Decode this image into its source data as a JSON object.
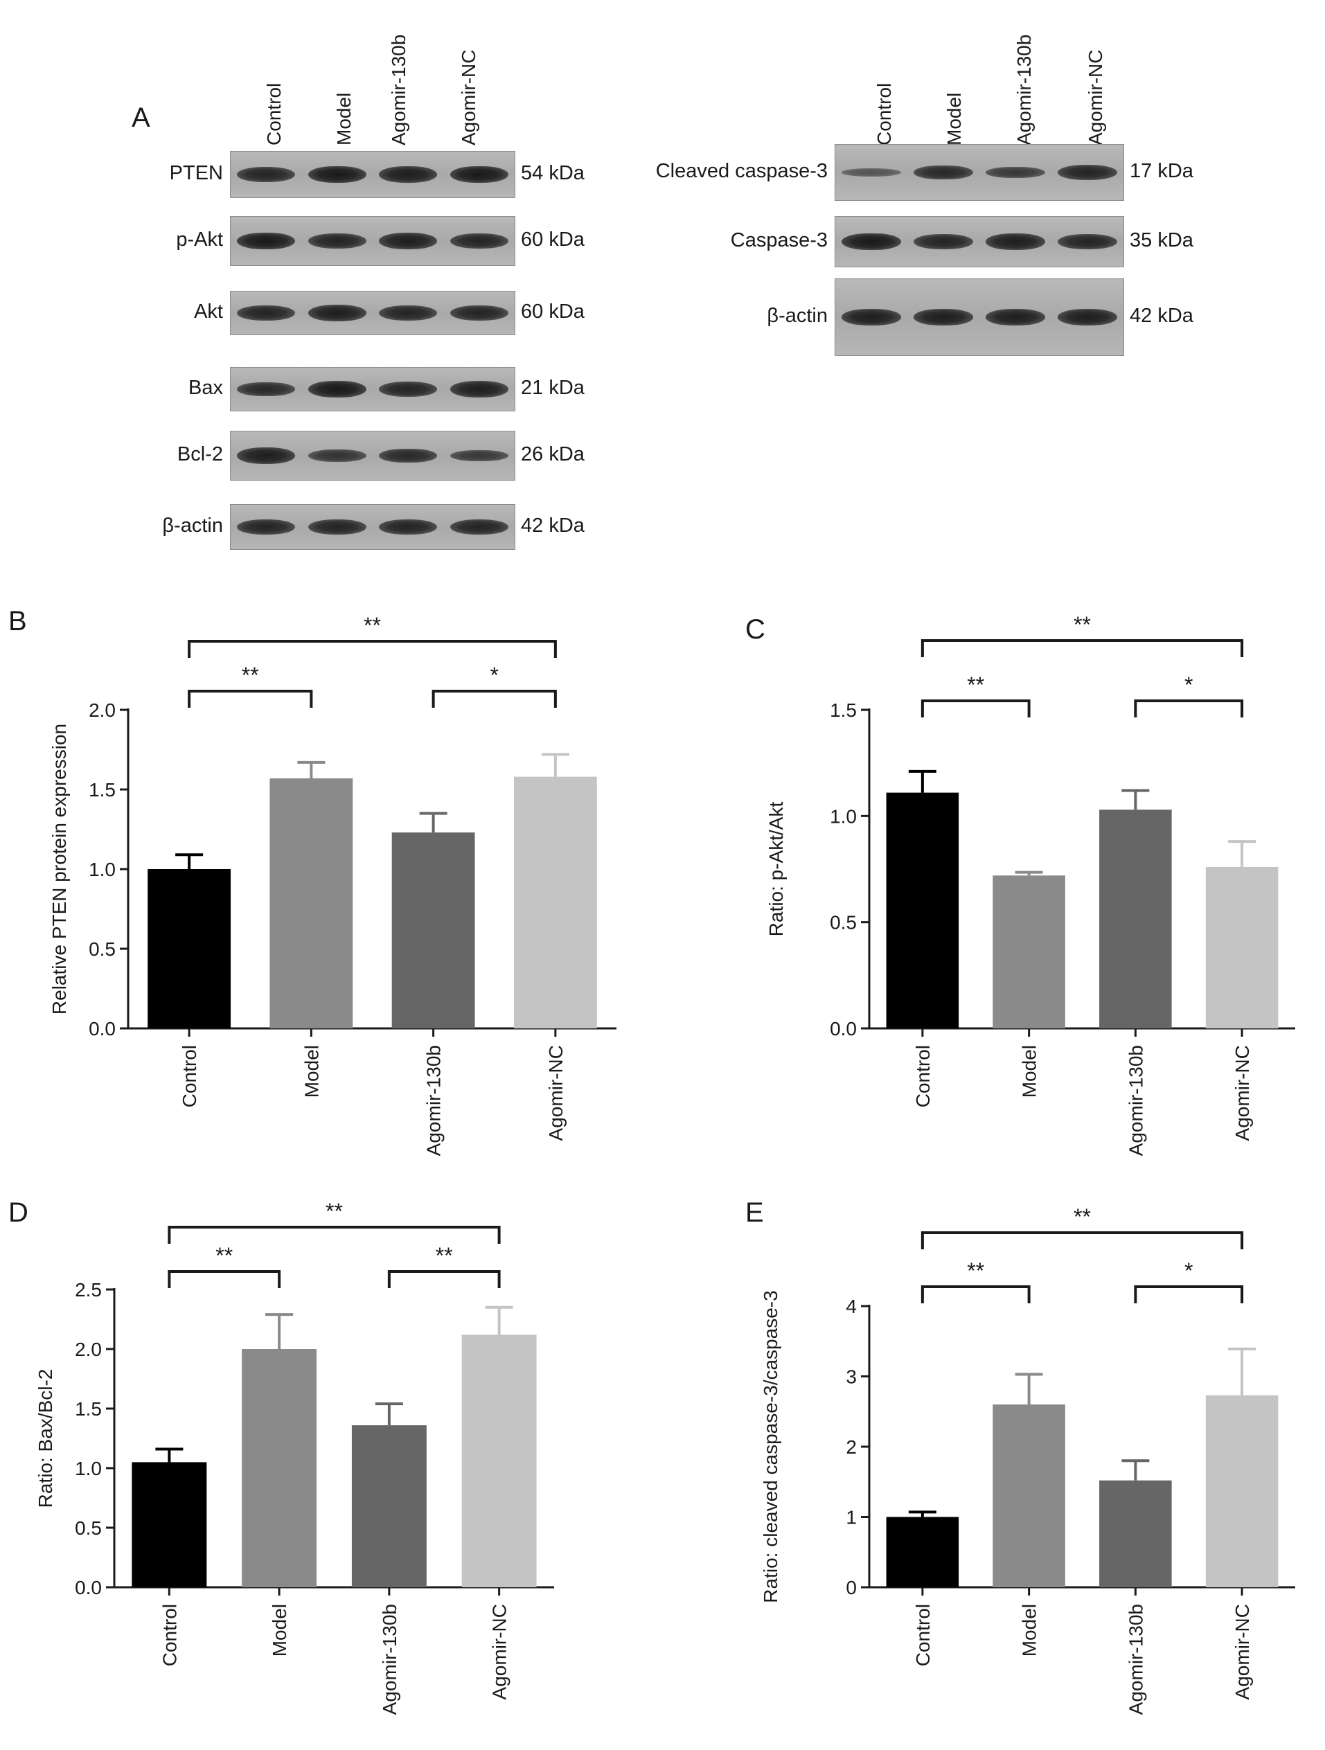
{
  "figure": {
    "panel_a": {
      "letter": "A",
      "lanes": [
        "Control",
        "Model",
        "Agomir-130b",
        "Agomir-NC"
      ],
      "left_blots": [
        {
          "label": "PTEN",
          "kda": "54 kDa",
          "intensity": [
            0.85,
            0.95,
            0.9,
            0.95
          ]
        },
        {
          "label": "p-Akt",
          "kda": "60 kDa",
          "intensity": [
            0.95,
            0.85,
            0.9,
            0.85
          ]
        },
        {
          "label": "Akt",
          "kda": "60 kDa",
          "intensity": [
            0.85,
            0.9,
            0.85,
            0.85
          ]
        },
        {
          "label": "Bax",
          "kda": "21 kDa",
          "intensity": [
            0.8,
            0.95,
            0.85,
            0.9
          ]
        },
        {
          "label": "Bcl-2",
          "kda": "26 kDa",
          "intensity": [
            0.9,
            0.7,
            0.8,
            0.65
          ]
        },
        {
          "label": "β-actin",
          "kda": "42 kDa",
          "intensity": [
            0.85,
            0.85,
            0.85,
            0.85
          ]
        }
      ],
      "right_blots": [
        {
          "label": "Cleaved caspase-3",
          "kda": "17 kDa",
          "intensity": [
            0.35,
            0.8,
            0.65,
            0.85
          ]
        },
        {
          "label": "Caspase-3",
          "kda": "35 kDa",
          "intensity": [
            0.95,
            0.85,
            0.9,
            0.85
          ]
        },
        {
          "label": "β-actin",
          "kda": "42 kDa",
          "intensity": [
            0.9,
            0.9,
            0.9,
            0.9
          ]
        }
      ]
    }
  },
  "chart_data": [
    {
      "panel": "B",
      "type": "bar",
      "categories": [
        "Control",
        "Model",
        "Agomir-130b",
        "Agomir-NC"
      ],
      "values": [
        1.0,
        1.57,
        1.23,
        1.58
      ],
      "errors": [
        0.09,
        0.1,
        0.12,
        0.14
      ],
      "colors": [
        "#000000",
        "#8a8a8a",
        "#666666",
        "#c4c4c4"
      ],
      "ylabel": "Relative PTEN protein expression",
      "ylim": [
        0,
        2.0
      ],
      "yticks": [
        "0.0",
        "0.5",
        "1.0",
        "1.5",
        "2.0"
      ],
      "brackets": [
        {
          "from": 0,
          "to": 1,
          "label": "**"
        },
        {
          "from": 2,
          "to": 3,
          "label": "*"
        },
        {
          "from": 0,
          "to": 3,
          "label": "**"
        }
      ]
    },
    {
      "panel": "C",
      "type": "bar",
      "categories": [
        "Control",
        "Model",
        "Agomir-130b",
        "Agomir-NC"
      ],
      "values": [
        1.11,
        0.72,
        1.03,
        0.76
      ],
      "errors": [
        0.1,
        0.015,
        0.09,
        0.12
      ],
      "colors": [
        "#000000",
        "#8a8a8a",
        "#666666",
        "#c4c4c4"
      ],
      "ylabel": "Ratio: p-Akt/Akt",
      "ylim": [
        0,
        1.5
      ],
      "yticks": [
        "0.0",
        "0.5",
        "1.0",
        "1.5"
      ],
      "brackets": [
        {
          "from": 0,
          "to": 1,
          "label": "**"
        },
        {
          "from": 2,
          "to": 3,
          "label": "*"
        },
        {
          "from": 0,
          "to": 3,
          "label": "**"
        }
      ]
    },
    {
      "panel": "D",
      "type": "bar",
      "categories": [
        "Control",
        "Model",
        "Agomir-130b",
        "Agomir-NC"
      ],
      "values": [
        1.05,
        2.0,
        1.36,
        2.12
      ],
      "errors": [
        0.11,
        0.29,
        0.18,
        0.23
      ],
      "colors": [
        "#000000",
        "#8a8a8a",
        "#666666",
        "#c4c4c4"
      ],
      "ylabel": "Ratio: Bax/Bcl-2",
      "ylim": [
        0,
        2.5
      ],
      "yticks": [
        "0.0",
        "0.5",
        "1.0",
        "1.5",
        "2.0",
        "2.5"
      ],
      "brackets": [
        {
          "from": 0,
          "to": 1,
          "label": "**"
        },
        {
          "from": 2,
          "to": 3,
          "label": "**"
        },
        {
          "from": 0,
          "to": 3,
          "label": "**"
        }
      ]
    },
    {
      "panel": "E",
      "type": "bar",
      "categories": [
        "Control",
        "Model",
        "Agomir-130b",
        "Agomir-NC"
      ],
      "values": [
        1.0,
        2.6,
        1.52,
        2.73
      ],
      "errors": [
        0.07,
        0.43,
        0.28,
        0.66
      ],
      "colors": [
        "#000000",
        "#8a8a8a",
        "#666666",
        "#c4c4c4"
      ],
      "ylabel": "Ratio: cleaved caspase-3/caspase-3",
      "ylim": [
        0,
        4
      ],
      "yticks": [
        "0",
        "1",
        "2",
        "3",
        "4"
      ],
      "brackets": [
        {
          "from": 0,
          "to": 1,
          "label": "**"
        },
        {
          "from": 2,
          "to": 3,
          "label": "*"
        },
        {
          "from": 0,
          "to": 3,
          "label": "**"
        }
      ]
    }
  ]
}
